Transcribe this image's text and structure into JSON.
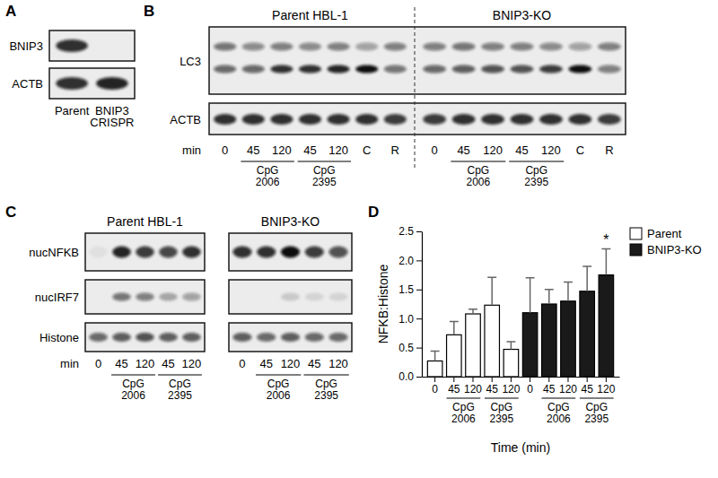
{
  "blots": [
    {
      "panel": "A",
      "groups": [
        {
          "lanes": [
            "Parent",
            "BNIP3 CRISPR"
          ]
        }
      ],
      "rows": [
        {
          "protein": "BNIP3",
          "bands": [
            [
              0.85,
              0
            ]
          ]
        },
        {
          "protein": "ACTB",
          "bands": [
            [
              0.85,
              0.9
            ]
          ]
        }
      ]
    },
    {
      "panel": "B",
      "lane_axis": "min",
      "groups": [
        {
          "title": "Parent HBL-1",
          "lanes": [
            "0",
            "45",
            "120",
            "45",
            "120",
            "C",
            "R"
          ],
          "treatments": [
            null,
            "CpG 2006",
            "CpG 2006",
            "CpG 2395",
            "CpG 2395",
            null,
            null
          ]
        },
        {
          "title": "BNIP3-KO",
          "lanes": [
            "0",
            "45",
            "120",
            "45",
            "120",
            "C",
            "R"
          ],
          "treatments": [
            null,
            "CpG 2006",
            "CpG 2006",
            "CpG 2395",
            "CpG 2395",
            null,
            null
          ]
        }
      ],
      "rows": [
        {
          "protein": "LC3",
          "bands": [
            [
              0.55,
              0.45,
              0.5,
              0.45,
              0.5,
              0.35,
              0.5,
              0.5,
              0.55,
              0.5,
              0.5,
              0.45,
              0.35,
              0.5
            ],
            [
              0.6,
              0.6,
              0.85,
              0.85,
              0.9,
              1.0,
              0.55,
              0.6,
              0.65,
              0.7,
              0.7,
              0.8,
              1.0,
              0.5
            ]
          ]
        },
        {
          "protein": "ACTB",
          "bands": [
            [
              0.85,
              0.85,
              0.85,
              0.85,
              0.85,
              0.85,
              0.8,
              0.8,
              0.85,
              0.85,
              0.85,
              0.85,
              0.85,
              0.8
            ]
          ]
        }
      ]
    },
    {
      "panel": "C",
      "lane_axis": "min",
      "groups": [
        {
          "title": "Parent HBL-1",
          "lanes": [
            "0",
            "45",
            "120",
            "45",
            "120"
          ],
          "treatments": [
            null,
            "CpG 2006",
            "CpG 2006",
            "CpG 2395",
            "CpG 2395"
          ]
        },
        {
          "title": "BNIP3-KO",
          "lanes": [
            "0",
            "45",
            "120",
            "45",
            "120"
          ],
          "treatments": [
            null,
            "CpG 2006",
            "CpG 2006",
            "CpG 2395",
            "CpG 2395"
          ]
        }
      ],
      "rows": [
        {
          "protein": "nucNFKB",
          "bands": [
            [
              0.05,
              0.9,
              0.8,
              0.75,
              0.85,
              0.85,
              0.85,
              1.0,
              0.8,
              0.7
            ]
          ]
        },
        {
          "protein": "nucIRF7",
          "bands": [
            [
              0,
              0.55,
              0.5,
              0.3,
              0.35,
              0,
              0,
              0.15,
              0.1,
              0.1
            ]
          ]
        },
        {
          "protein": "Histone",
          "bands": [
            [
              0.6,
              0.65,
              0.7,
              0.65,
              0.65,
              0.65,
              0.6,
              0.65,
              0.6,
              0.6
            ]
          ]
        }
      ]
    }
  ],
  "chart_data": {
    "type": "bar",
    "title": "D",
    "x_label": "Time (min)",
    "y_label": "NFKB:Histone",
    "categories": [
      "0",
      "45",
      "120",
      "45",
      "120",
      "0",
      "45",
      "120",
      "45",
      "120"
    ],
    "category_groups": [
      null,
      "CpG 2006",
      "CpG 2006",
      "CpG 2395",
      "CpG 2395",
      null,
      "CpG 2006",
      "CpG 2006",
      "CpG 2395",
      "CpG 2395"
    ],
    "ylim": [
      0,
      2.5
    ],
    "yticks": [
      {
        "value": 0,
        "label": "0.0"
      },
      0.5,
      {
        "value": 1,
        "label": "1.0"
      },
      1.5,
      {
        "value": 2,
        "label": "2.0"
      },
      2.5
    ],
    "legend": "top-right",
    "series": [
      {
        "name": "Parent",
        "color": "#ffffff",
        "values": [
          0.27,
          0.72,
          1.08,
          1.23,
          0.47,
          null,
          null,
          null,
          null,
          null
        ],
        "errors": [
          0.17,
          0.23,
          0.08,
          0.48,
          0.13,
          null,
          null,
          null,
          null,
          null
        ]
      },
      {
        "name": "BNIP3-KO",
        "color": "#1a1a1a",
        "values": [
          null,
          null,
          null,
          null,
          null,
          1.1,
          1.25,
          1.3,
          1.47,
          1.75
        ],
        "errors": [
          null,
          null,
          null,
          null,
          null,
          0.6,
          0.25,
          0.33,
          0.43,
          0.45
        ]
      }
    ],
    "annotations": [
      {
        "text": "*",
        "series": 1,
        "index": 9
      }
    ]
  }
}
